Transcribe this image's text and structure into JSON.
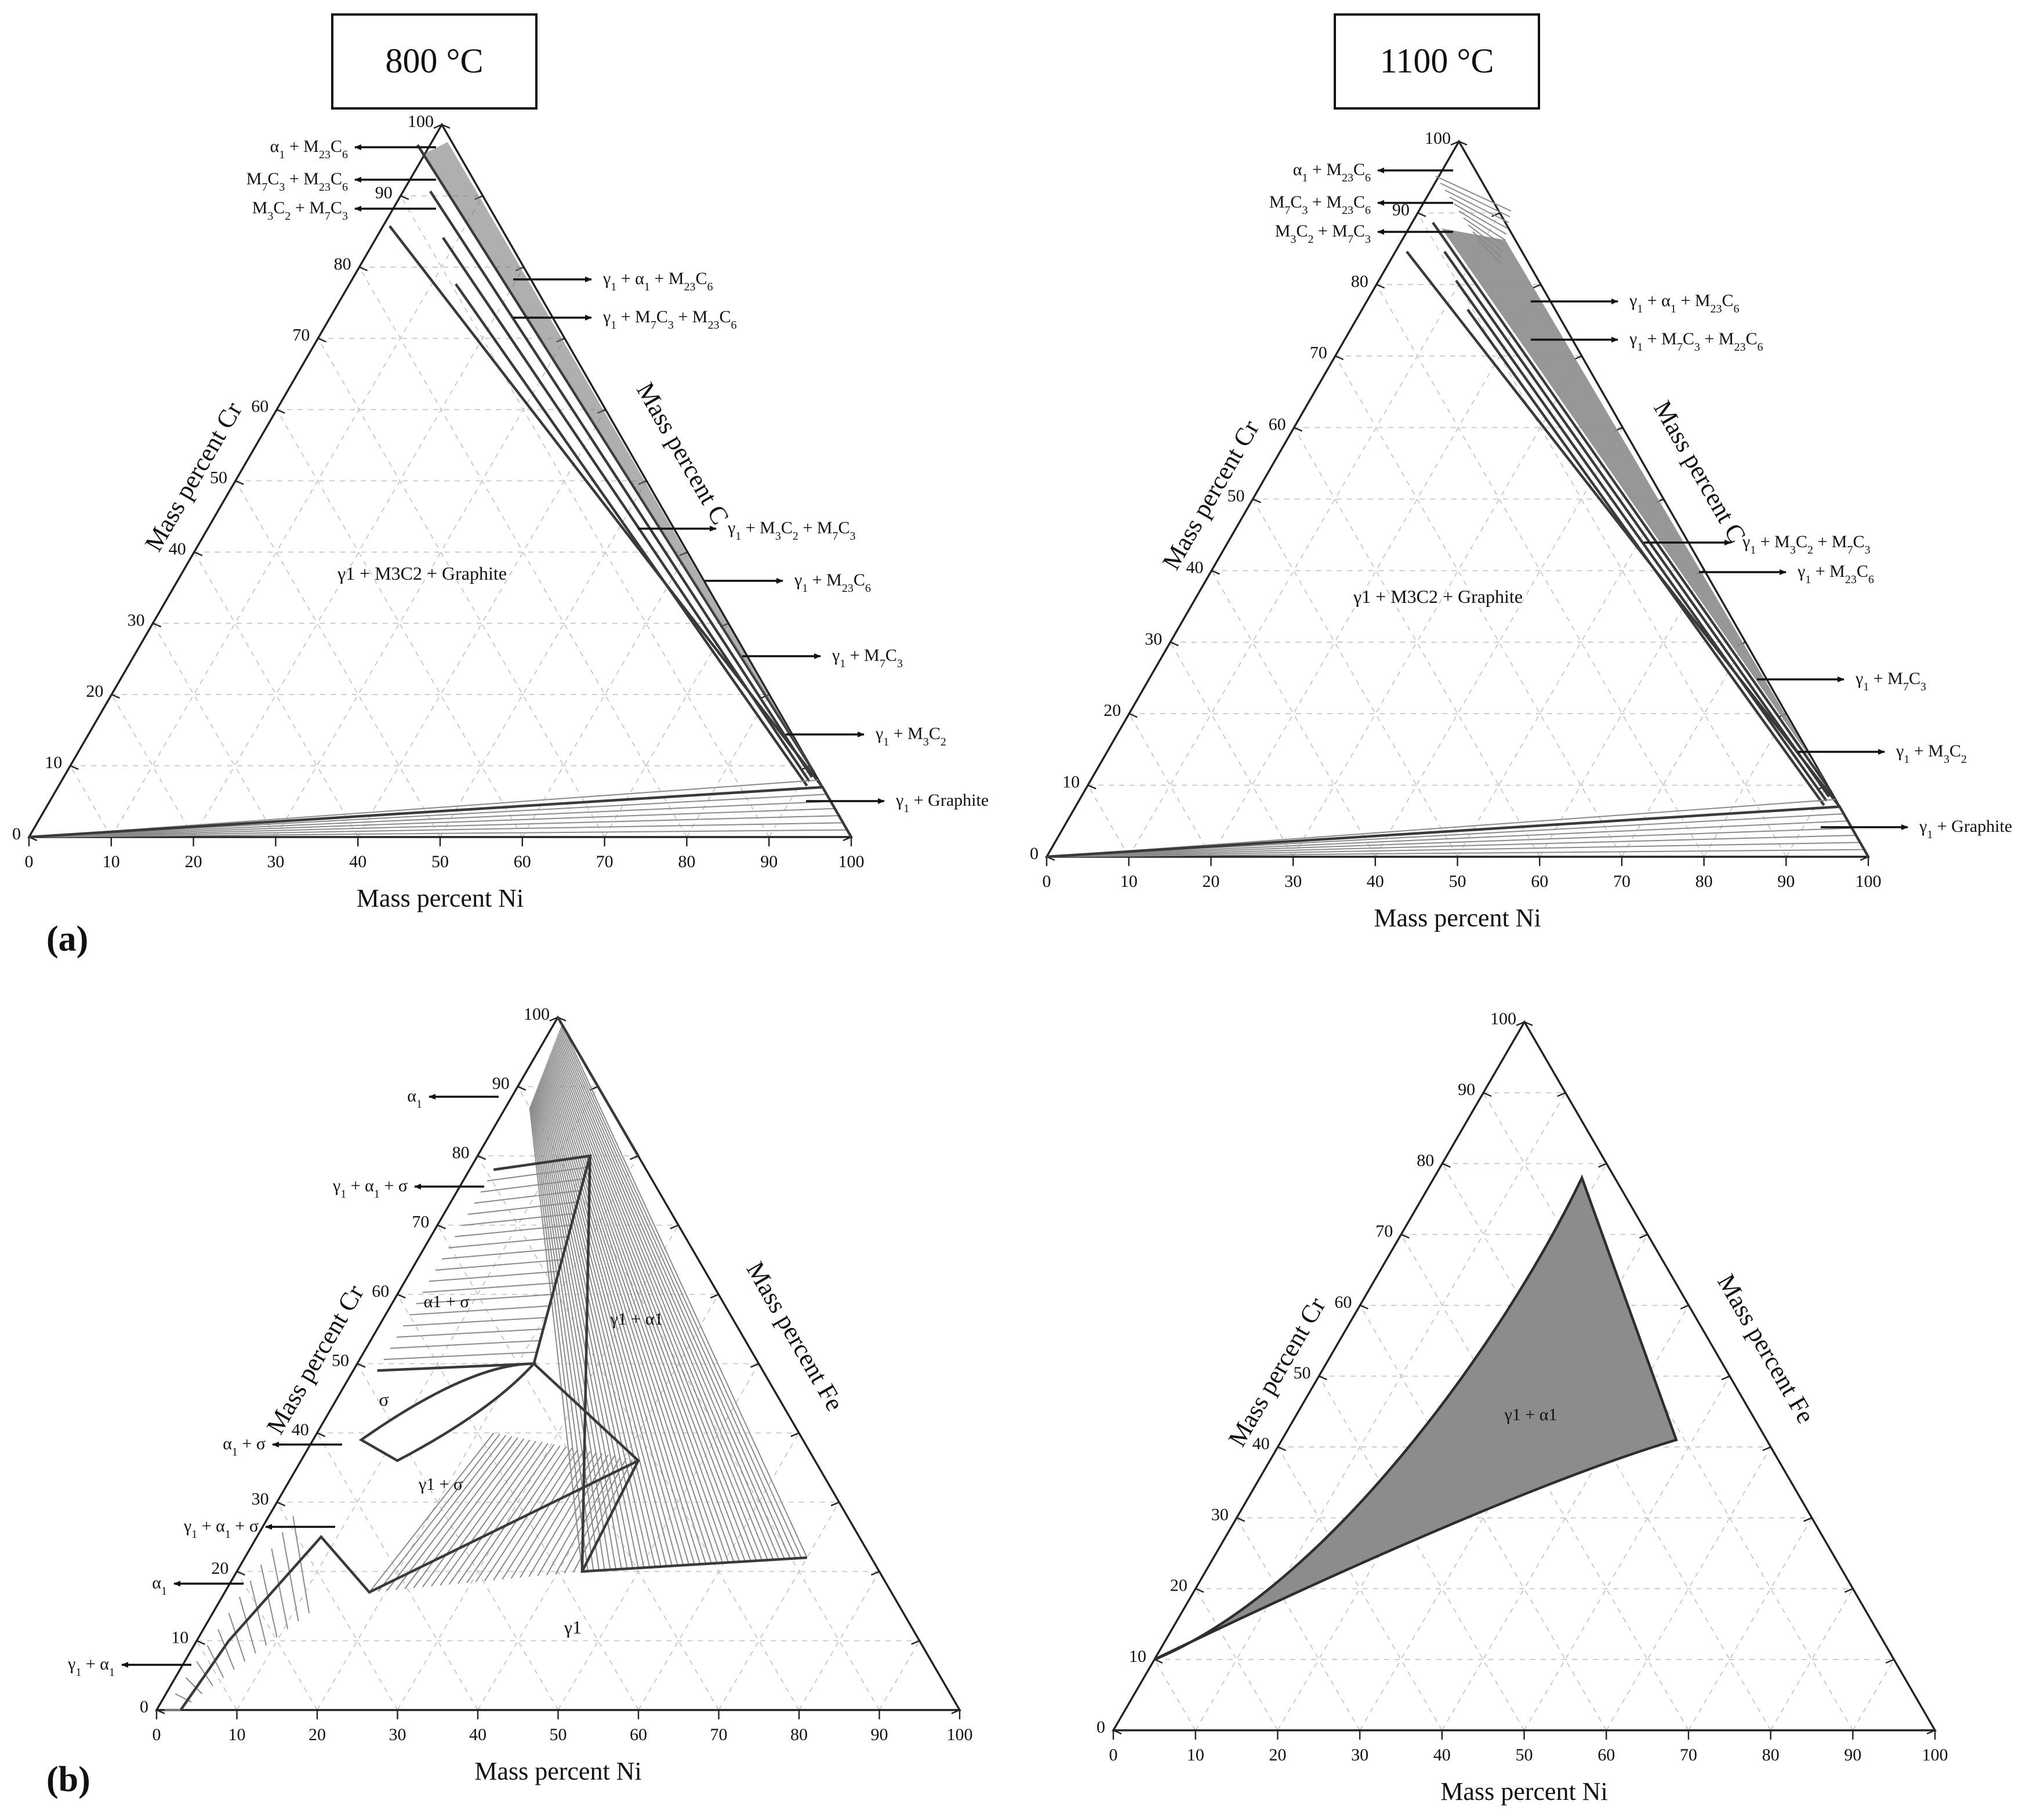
{
  "panels": [
    {
      "id": "a-800",
      "temperature": "800 °C",
      "bottom_axis": "Mass percent Ni",
      "left_axis": "Mass percent Cr",
      "right_axis": "Mass percent C",
      "ticks": [
        "0",
        "10",
        "20",
        "30",
        "40",
        "50",
        "60",
        "70",
        "80",
        "90",
        "100"
      ],
      "region_labels": [
        {
          "main": "γ",
          "sub": "1",
          "rest": " + M",
          "sub2": "3",
          "rest2": "C",
          "sub3": "2",
          "rest3": " + Graphite"
        }
      ],
      "annotations": [
        {
          "text": "α1 + M23C6",
          "side": "left"
        },
        {
          "text": "M7C3 + M23C6",
          "side": "left"
        },
        {
          "text": "M3C2 + M7C3",
          "side": "left"
        },
        {
          "text": "γ1 + α1 + M23C6",
          "side": "right"
        },
        {
          "text": "γ1 + M7C3 + M23C6",
          "side": "right"
        },
        {
          "text": "γ1 + M3C2 + M7C3",
          "side": "right"
        },
        {
          "text": "γ1 + M23C6",
          "side": "right"
        },
        {
          "text": "γ1 + M7C3",
          "side": "right"
        },
        {
          "text": "γ1 + M3C2",
          "side": "right"
        },
        {
          "text": "γ1 + Graphite",
          "side": "right"
        }
      ]
    },
    {
      "id": "a-1100",
      "temperature": "1100 °C",
      "bottom_axis": "Mass percent Ni",
      "left_axis": "Mass percent Cr",
      "right_axis": "Mass percent C",
      "ticks": [
        "0",
        "10",
        "20",
        "30",
        "40",
        "50",
        "60",
        "70",
        "80",
        "90",
        "100"
      ],
      "annotations": [
        {
          "text": "α1 + M23C6",
          "side": "left"
        },
        {
          "text": "M7C3 + M23C6",
          "side": "left"
        },
        {
          "text": "M3C2 + M7C3",
          "side": "left"
        },
        {
          "text": "γ1 + α1 + M23C6",
          "side": "right"
        },
        {
          "text": "γ1 + M7C3 + M23C6",
          "side": "right"
        },
        {
          "text": "γ1 + M3C2 + M7C3",
          "side": "right"
        },
        {
          "text": "γ1 + M23C6",
          "side": "right"
        },
        {
          "text": "γ1 + M7C3",
          "side": "right"
        },
        {
          "text": "γ1 + M3C2",
          "side": "right"
        },
        {
          "text": "γ1 + Graphite",
          "side": "right"
        }
      ]
    },
    {
      "id": "b-800",
      "bottom_axis": "Mass percent Ni",
      "left_axis": "Mass percent Cr",
      "right_axis": "Mass percent Fe",
      "ticks": [
        "0",
        "10",
        "20",
        "30",
        "40",
        "50",
        "60",
        "70",
        "80",
        "90",
        "100"
      ],
      "annotations": [
        {
          "text": "α1",
          "side": "left"
        },
        {
          "text": "γ1 + α1 + σ",
          "side": "left"
        },
        {
          "text": "α1 + σ",
          "side": "left"
        },
        {
          "text": "γ1 + α1 + σ",
          "side": "left"
        },
        {
          "text": "α1",
          "side": "left"
        },
        {
          "text": "γ1 + α1",
          "side": "left"
        }
      ]
    },
    {
      "id": "b-1100",
      "bottom_axis": "Mass percent Ni",
      "left_axis": "Mass percent Cr",
      "right_axis": "Mass percent Fe",
      "ticks": [
        "0",
        "10",
        "20",
        "30",
        "40",
        "50",
        "60",
        "70",
        "80",
        "90",
        "100"
      ]
    }
  ],
  "panel_labels": {
    "a": "(a)",
    "b": "(b)"
  },
  "temps": {
    "t800": "800 °C",
    "t1100": "1100 °C"
  },
  "phase_b800": {
    "sigma": "σ",
    "a_s": "α1 + σ",
    "g_a": "γ1 + α1",
    "g_s": "γ1 + σ",
    "g": "γ1"
  },
  "phase_b1100": {
    "g_a": "γ1 + α1"
  },
  "phase_a800": {
    "main": "γ1 + M3C2 + Graphite"
  },
  "phase_a1100": {
    "main": "γ1 + M3C2 + Graphite"
  },
  "colors": {
    "axis": "#222222",
    "fill": "#8c8c8c",
    "tie": "#8a8a8a",
    "grid": "#c2c2c2"
  }
}
